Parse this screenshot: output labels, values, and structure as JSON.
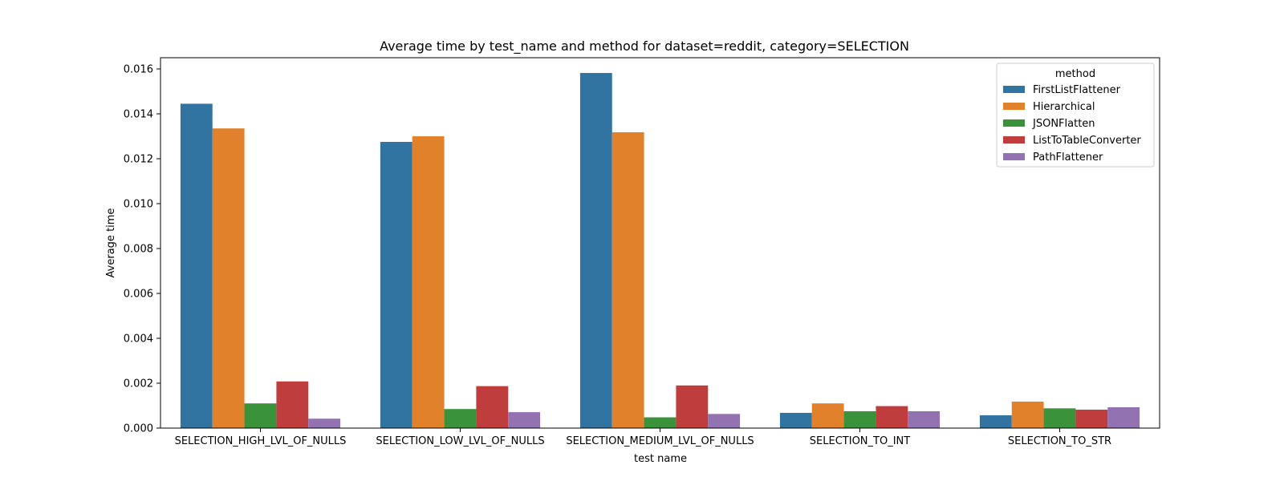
{
  "chart_data": {
    "type": "bar",
    "title": "Average time by test_name and method for dataset=reddit, category=SELECTION",
    "xlabel": "test name",
    "ylabel": "Average time",
    "ylim": [
      0,
      0.0165
    ],
    "yticks": [
      "0.000",
      "0.002",
      "0.004",
      "0.006",
      "0.008",
      "0.010",
      "0.012",
      "0.014",
      "0.016"
    ],
    "ytick_values": [
      0,
      0.002,
      0.004,
      0.006,
      0.008,
      0.01,
      0.012,
      0.014,
      0.016
    ],
    "grid": false,
    "legend": {
      "title": "method",
      "placement": "top-right"
    },
    "categories": [
      "SELECTION_HIGH_LVL_OF_NULLS",
      "SELECTION_LOW_LVL_OF_NULLS",
      "SELECTION_MEDIUM_LVL_OF_NULLS",
      "SELECTION_TO_INT",
      "SELECTION_TO_STR"
    ],
    "series": [
      {
        "name": "FirstListFlattener",
        "color": "#3274a1",
        "values": [
          0.01445,
          0.01275,
          0.01582,
          0.00068,
          0.00057
        ]
      },
      {
        "name": "Hierarchical",
        "color": "#e1812c",
        "values": [
          0.01335,
          0.013,
          0.01318,
          0.0011,
          0.00118
        ]
      },
      {
        "name": "JSONFlatten",
        "color": "#3a923a",
        "values": [
          0.0011,
          0.00085,
          0.00048,
          0.00075,
          0.00088
        ]
      },
      {
        "name": "ListToTableConverter",
        "color": "#c03d3e",
        "values": [
          0.00208,
          0.00187,
          0.0019,
          0.00098,
          0.00082
        ]
      },
      {
        "name": "PathFlattener",
        "color": "#9372b2",
        "values": [
          0.00042,
          0.00071,
          0.00063,
          0.00075,
          0.00093
        ]
      }
    ]
  }
}
